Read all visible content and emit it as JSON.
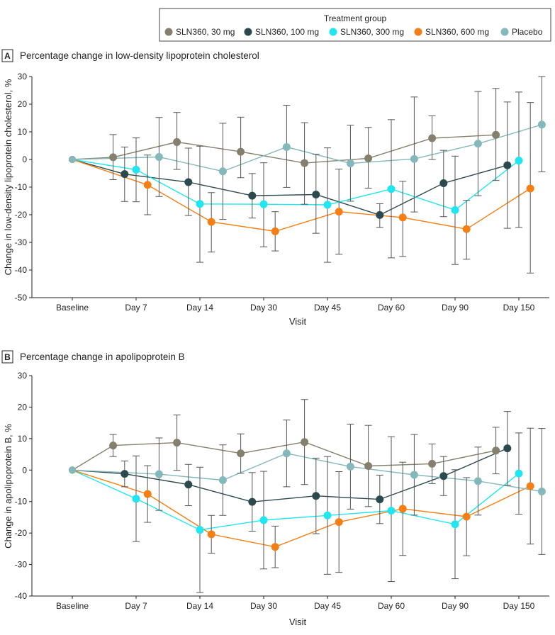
{
  "legend": {
    "title": "Treatment group",
    "entries": [
      {
        "name": "SLN360, 30 mg",
        "color": "#857f6d"
      },
      {
        "name": "SLN360, 100 mg",
        "color": "#2c4a4e"
      },
      {
        "name": "SLN360, 300 mg",
        "color": "#1fe6f0"
      },
      {
        "name": "SLN360, 600 mg",
        "color": "#f57f14"
      },
      {
        "name": "Placebo",
        "color": "#84b8bb"
      }
    ]
  },
  "chart_data": [
    {
      "type": "line",
      "panel_letter": "A",
      "title": "Percentage change in low-density lipoprotein cholesterol",
      "xlabel": "Visit",
      "ylabel": "Change in low-density lipoprotein cholesterol, %",
      "ylim": [
        -50,
        30
      ],
      "yticks": [
        30,
        20,
        10,
        0,
        -10,
        -20,
        -30,
        -40,
        -50
      ],
      "categories": [
        "Baseline",
        "Day 7",
        "Day 14",
        "Day 30",
        "Day 45",
        "Day 60",
        "Day 90",
        "Day 150"
      ],
      "series": [
        {
          "name": "SLN360, 30 mg",
          "offset": -0.36,
          "values": [
            0,
            0.8,
            6.3,
            2.8,
            -1.3,
            0.4,
            7.7,
            8.9
          ],
          "err_low": [
            0,
            -7.3,
            -3.6,
            -6.6,
            -16.2,
            -10.4,
            0.0,
            -7.6
          ],
          "err_high": [
            0,
            9.0,
            17.0,
            15.3,
            13.3,
            11.6,
            15.8,
            25.7
          ]
        },
        {
          "name": "SLN360, 100 mg",
          "offset": -0.18,
          "values": [
            0,
            -5.3,
            -8.2,
            -13.1,
            -12.7,
            -20.1,
            -8.6,
            -2.1
          ],
          "err_low": [
            0,
            -15.2,
            -20.3,
            -21.2,
            -26.7,
            -24.6,
            -20.7,
            -24.9
          ],
          "err_high": [
            0,
            4.5,
            4.1,
            -5.1,
            1.9,
            -16.0,
            3.3,
            20.8
          ]
        },
        {
          "name": "SLN360, 300 mg",
          "offset": 0,
          "values": [
            0,
            -3.7,
            -16.1,
            -16.2,
            -16.4,
            -10.7,
            -18.3,
            -0.4
          ],
          "err_low": [
            0,
            -15.3,
            -37.2,
            -31.6,
            -37.2,
            -35.6,
            -38.0,
            -24.6
          ],
          "err_high": [
            0,
            7.8,
            4.8,
            -1.2,
            4.2,
            14.4,
            1.2,
            24.4
          ]
        },
        {
          "name": "SLN360, 600 mg",
          "offset": 0.18,
          "values": [
            0,
            -9.2,
            -22.6,
            -26.0,
            -18.9,
            -21.0,
            -25.2,
            -10.5
          ],
          "err_low": [
            0,
            -20.0,
            -33.5,
            -33.1,
            -34.3,
            -35.1,
            -36.1,
            -41.1
          ],
          "err_high": [
            0,
            1.6,
            -12.0,
            -18.9,
            -3.5,
            -7.9,
            -14.8,
            20.6
          ]
        },
        {
          "name": "Placebo",
          "offset": 0.36,
          "values": [
            0,
            0.9,
            -4.3,
            4.5,
            -1.4,
            0.2,
            5.7,
            12.6
          ],
          "err_low": [
            0,
            -13.4,
            -21.7,
            -10.1,
            -15.1,
            -19.0,
            -13.1,
            -4.5
          ],
          "err_high": [
            0,
            15.2,
            13.1,
            19.6,
            12.4,
            22.6,
            24.6,
            30.0
          ]
        }
      ]
    },
    {
      "type": "line",
      "panel_letter": "B",
      "title": "Percentage change in apolipoprotein B",
      "xlabel": "Visit",
      "ylabel": "Change in apolipoprotein B, %",
      "ylim": [
        -40,
        30
      ],
      "yticks": [
        30,
        20,
        10,
        0,
        -10,
        -20,
        -30,
        -40
      ],
      "categories": [
        "Baseline",
        "Day 7",
        "Day 14",
        "Day 30",
        "Day 45",
        "Day 60",
        "Day 90",
        "Day 150"
      ],
      "series": [
        {
          "name": "SLN360, 30 mg",
          "offset": -0.36,
          "values": [
            0,
            7.8,
            8.7,
            5.3,
            8.9,
            1.3,
            2.0,
            6.2
          ],
          "err_low": [
            0,
            4.3,
            -0.1,
            -1.0,
            -4.6,
            -11.6,
            -4.3,
            -1.2
          ],
          "err_high": [
            0,
            11.3,
            17.5,
            11.5,
            22.4,
            14.2,
            8.3,
            13.6
          ]
        },
        {
          "name": "SLN360, 100 mg",
          "offset": -0.18,
          "values": [
            0,
            -1.2,
            -4.6,
            -10.1,
            -8.2,
            -9.3,
            -1.9,
            6.9
          ],
          "err_low": [
            0,
            -5.3,
            -11.3,
            -19.4,
            -20.2,
            -17.0,
            -8.1,
            -4.8
          ],
          "err_high": [
            0,
            2.9,
            1.8,
            -0.8,
            3.8,
            -1.6,
            4.3,
            18.6
          ]
        },
        {
          "name": "SLN360, 300 mg",
          "offset": 0,
          "values": [
            0,
            -9.1,
            -19.0,
            -15.9,
            -14.4,
            -12.9,
            -17.2,
            -1.1
          ],
          "err_low": [
            0,
            -22.7,
            -38.9,
            -31.4,
            -33.1,
            -35.4,
            -34.5,
            -14.0
          ],
          "err_high": [
            0,
            4.5,
            0.9,
            -0.4,
            4.3,
            10.6,
            0.1,
            11.8
          ]
        },
        {
          "name": "SLN360, 600 mg",
          "offset": 0.18,
          "values": [
            0,
            -7.6,
            -20.4,
            -24.4,
            -16.5,
            -12.3,
            -14.8,
            -5.1
          ],
          "err_low": [
            0,
            -16.6,
            -26.4,
            -31.0,
            -32.5,
            -27.1,
            -27.2,
            -23.5
          ],
          "err_high": [
            0,
            1.4,
            -14.4,
            -17.8,
            -0.5,
            2.5,
            -2.4,
            13.3
          ]
        },
        {
          "name": "Placebo",
          "offset": 0.36,
          "values": [
            0,
            -1.3,
            -3.2,
            5.3,
            1.1,
            -1.5,
            -3.5,
            -6.8
          ],
          "err_low": [
            0,
            -12.8,
            -14.4,
            -5.3,
            -12.4,
            -14.3,
            -14.3,
            -26.8
          ],
          "err_high": [
            0,
            10.2,
            8.0,
            15.9,
            14.6,
            11.3,
            7.3,
            13.2
          ]
        }
      ]
    }
  ]
}
